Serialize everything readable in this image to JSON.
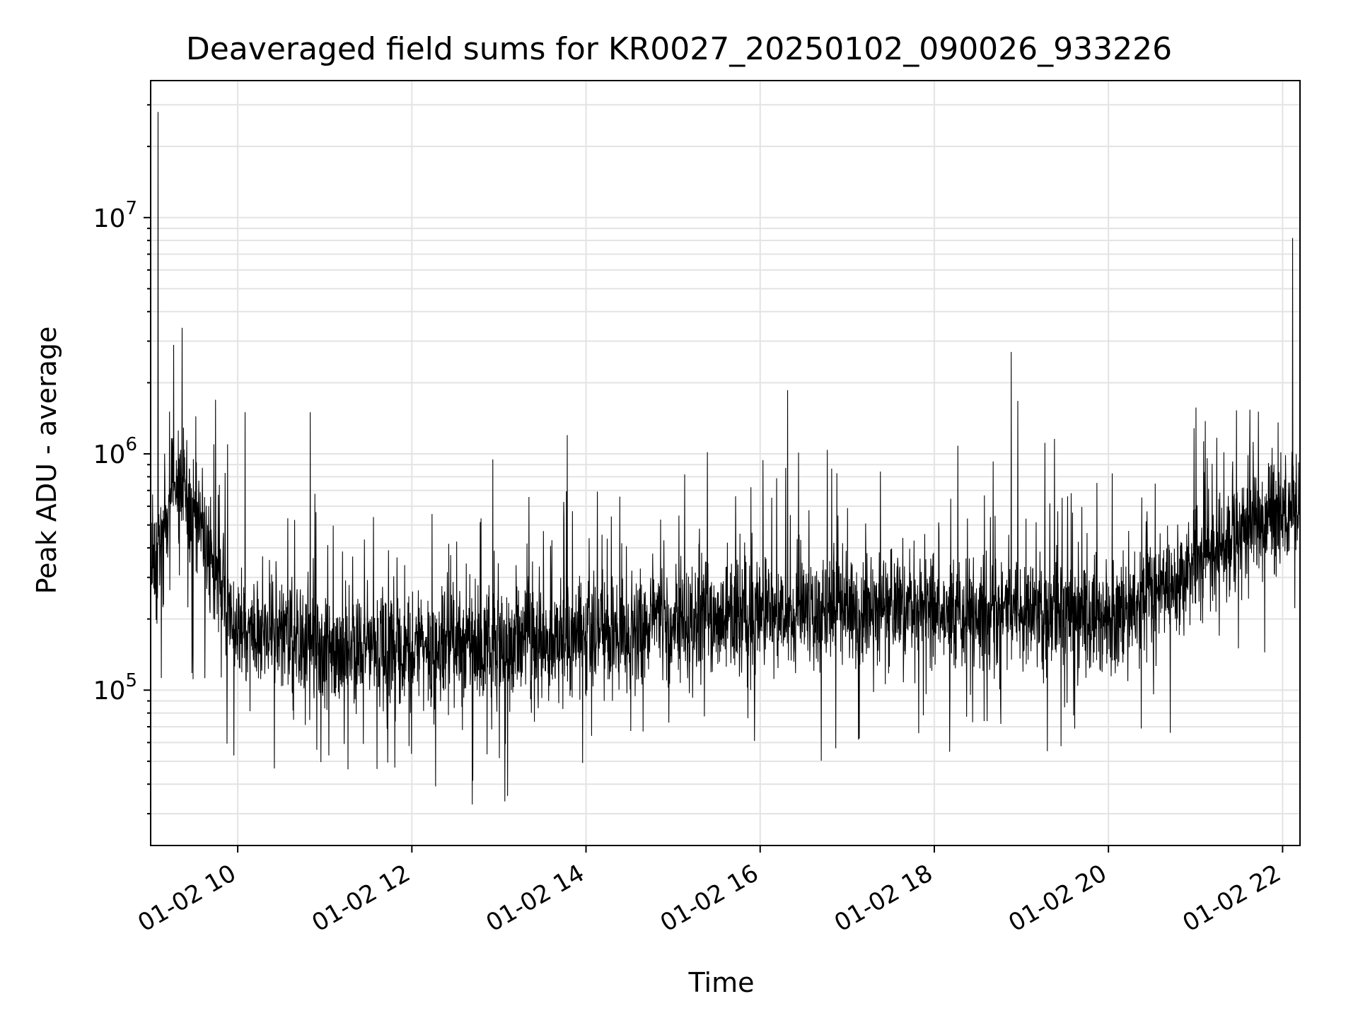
{
  "chart_data": {
    "type": "line",
    "title": "Deaveraged field sums for KR0027_20250102_090026_933226",
    "xlabel": "Time",
    "ylabel": "Peak ADU - average",
    "x_axis": {
      "type": "datetime",
      "range": [
        "2025-01-02 09:00",
        "2025-01-02 22:12"
      ],
      "tick_labels": [
        "01-02 10",
        "01-02 12",
        "01-02 14",
        "01-02 16",
        "01-02 18",
        "01-02 20",
        "01-02 22"
      ],
      "tick_times": [
        "2025-01-02 10:00",
        "2025-01-02 12:00",
        "2025-01-02 14:00",
        "2025-01-02 16:00",
        "2025-01-02 18:00",
        "2025-01-02 20:00",
        "2025-01-02 22:00"
      ]
    },
    "y_axis": {
      "scale": "log",
      "range": [
        22000,
        38000000
      ],
      "tick_labels": [
        {
          "base": "10",
          "exp": "5",
          "value": 100000
        },
        {
          "base": "10",
          "exp": "6",
          "value": 1000000
        },
        {
          "base": "10",
          "exp": "7",
          "value": 10000000
        }
      ]
    },
    "grid": true,
    "legend": "none",
    "series": [
      {
        "color": "#000000",
        "values_description": "dense noisy time series (~several thousand samples) fluctuating mostly between 5e4 and 6e5",
        "key_points": [
          {
            "t": "2025-01-02 09:00",
            "y": 300000
          },
          {
            "t": "2025-01-02 09:05",
            "y": 28000000
          },
          {
            "t": "2025-01-02 09:20",
            "y": 800000
          },
          {
            "t": "2025-01-02 10:00",
            "y": 180000
          },
          {
            "t": "2025-01-02 10:05",
            "y": 1500000
          },
          {
            "t": "2025-01-02 10:50",
            "y": 1500000
          },
          {
            "t": "2025-01-02 12:00",
            "y": 140000
          },
          {
            "t": "2025-01-02 13:47",
            "y": 1200000
          },
          {
            "t": "2025-01-02 14:00",
            "y": 170000
          },
          {
            "t": "2025-01-02 16:00",
            "y": 210000
          },
          {
            "t": "2025-01-02 18:00",
            "y": 220000
          },
          {
            "t": "2025-01-02 18:53",
            "y": 2700000
          },
          {
            "t": "2025-01-02 20:00",
            "y": 200000
          },
          {
            "t": "2025-01-02 21:45",
            "y": 500000
          },
          {
            "t": "2025-01-02 22:07",
            "y": 8200000
          },
          {
            "t": "2025-01-02 22:12",
            "y": 600000
          }
        ]
      }
    ]
  }
}
